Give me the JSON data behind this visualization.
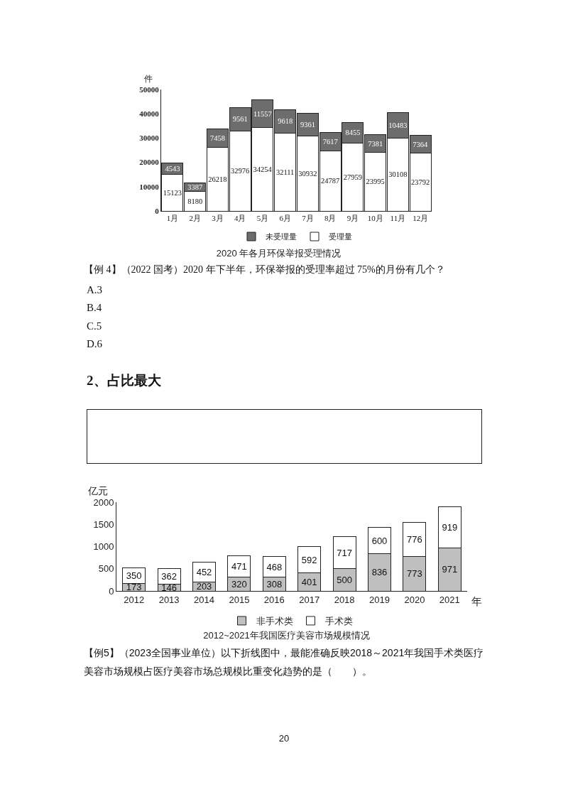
{
  "chart_data": [
    {
      "type": "bar",
      "title": "2020 年各月环保举报受理情况",
      "ylabel": "件",
      "categories": [
        "1月",
        "2月",
        "3月",
        "4月",
        "5月",
        "6月",
        "7月",
        "8月",
        "9月",
        "10月",
        "11月",
        "12月"
      ],
      "stacked": true,
      "series": [
        {
          "name": "受理量",
          "color": "#ffffff",
          "values": [
            15123,
            8180,
            26218,
            32976,
            34254,
            32111,
            30932,
            24787,
            27959,
            23995,
            30108,
            23792
          ]
        },
        {
          "name": "未受理量",
          "color": "#6d6d6d",
          "values": [
            4543,
            3387,
            7458,
            9561,
            11557,
            9618,
            9361,
            7617,
            8455,
            7381,
            10483,
            7364
          ]
        }
      ],
      "ylim": [
        0,
        50000
      ],
      "yticks": [
        0,
        10000,
        20000,
        30000,
        40000,
        50000
      ],
      "legend": "bottom",
      "data_labels": true,
      "annotations": [
        "【例 4】（2022 国考）2020 年下半年，环保举报的受理率超过 75%的月份有几个？",
        "A.3",
        "B.4",
        "C.5",
        "D.6"
      ]
    },
    {
      "type": "bar",
      "title": "2012~2021年我国医疗美容市场规模情况",
      "xlabel": "年",
      "ylabel": "亿元",
      "categories": [
        "2012",
        "2013",
        "2014",
        "2015",
        "2016",
        "2017",
        "2018",
        "2019",
        "2020",
        "2021"
      ],
      "stacked": true,
      "series": [
        {
          "name": "非手术类",
          "color": "#bfbfbf",
          "values": [
            173,
            146,
            203,
            320,
            308,
            401,
            500,
            836,
            773,
            971
          ]
        },
        {
          "name": "手术类",
          "color": "#ffffff",
          "values": [
            350,
            362,
            452,
            471,
            468,
            592,
            717,
            600,
            776,
            919
          ]
        }
      ],
      "ylim": [
        0,
        2000
      ],
      "yticks": [
        0,
        500,
        1000,
        1500,
        2000
      ],
      "legend": "bottom",
      "data_labels": true,
      "annotations": [
        "2、占比最大",
        "【例5】（2023全国事业单位）以下折线图中，最能准确反映2018～2021年我国手术类医疗美容市场规模占医疗美容市场总规模比重变化趋势的是（　　）。",
        "20"
      ]
    }
  ]
}
